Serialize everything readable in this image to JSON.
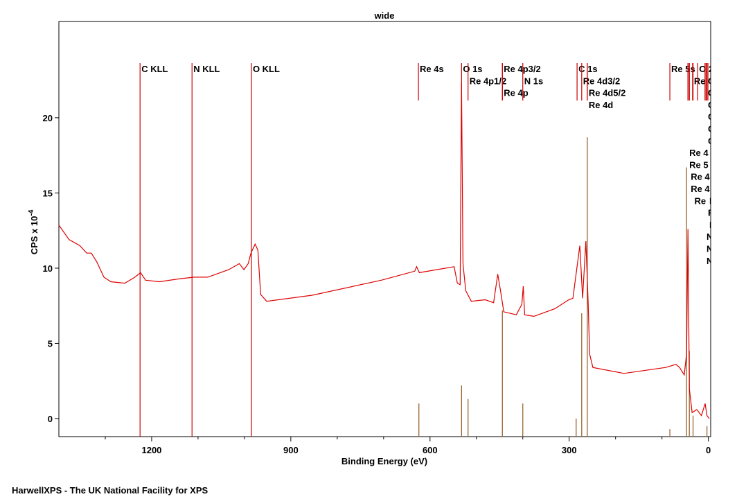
{
  "chart_data": {
    "type": "line",
    "title": "wide",
    "xlabel": "Binding Energy (eV)",
    "ylabel": "CPS x 10",
    "ylabel_exp": "-4",
    "footer": "HarwellXPS - The UK National Facility for XPS",
    "xlim": [
      1400,
      -5
    ],
    "ylim": [
      -1.2,
      26.4
    ],
    "xticks": [
      1200,
      900,
      600,
      300,
      0
    ],
    "xminor": [
      1300,
      1100,
      1000,
      800,
      700,
      500,
      400,
      200,
      100
    ],
    "yticks": [
      0,
      5,
      10,
      15,
      20
    ],
    "series": [
      {
        "name": "wide",
        "color": "#dd0000",
        "x": [
          1400,
          1378,
          1355,
          1340,
          1330,
          1318,
          1303,
          1288,
          1258,
          1236,
          1224,
          1213,
          1183,
          1138,
          1108,
          1079,
          1034,
          1011,
          1001,
          992,
          986,
          977,
          971,
          965,
          952,
          854,
          705,
          633,
          629,
          623,
          548,
          541,
          535,
          532,
          529,
          523,
          511,
          481,
          463,
          454,
          448,
          441,
          414,
          402,
          399,
          396,
          376,
          331,
          301,
          292,
          286,
          277,
          271,
          264,
          259,
          256,
          249,
          182,
          92,
          70,
          62,
          52,
          47,
          44,
          41,
          35,
          25,
          15,
          7,
          3,
          -2
        ],
        "values": [
          12.86,
          11.9,
          11.5,
          11.0,
          11.0,
          10.4,
          9.4,
          9.1,
          9.0,
          9.4,
          9.7,
          9.2,
          9.1,
          9.3,
          9.4,
          9.4,
          9.9,
          10.3,
          9.9,
          10.3,
          11.0,
          11.6,
          11.2,
          8.25,
          7.8,
          8.2,
          9.2,
          9.8,
          10.1,
          9.7,
          10.1,
          9.0,
          8.9,
          22.3,
          10.3,
          8.5,
          7.8,
          7.9,
          7.7,
          9.6,
          8.5,
          7.1,
          6.9,
          7.6,
          8.8,
          6.9,
          6.8,
          7.3,
          7.9,
          8.0,
          9.4,
          11.5,
          8.0,
          11.8,
          7.6,
          4.3,
          3.4,
          3.0,
          3.4,
          3.6,
          3.4,
          2.9,
          4.3,
          12.6,
          2.0,
          0.4,
          0.6,
          0.2,
          1.0,
          0.2,
          0
        ]
      }
    ],
    "reference": {
      "color": "#996633",
      "x": [
        624,
        532,
        518,
        444,
        400,
        285,
        273,
        261,
        83,
        47,
        41,
        33,
        3
      ],
      "values": [
        1.0,
        2.2,
        1.3,
        7.2,
        1.0,
        0.0,
        7.0,
        18.7,
        -0.7,
        16.7,
        4.5,
        0.2,
        -0.5
      ]
    },
    "markers": {
      "color": "#cc0000",
      "x": [
        1225,
        1113,
        985,
        625,
        532,
        518,
        444,
        444,
        400,
        283,
        273,
        261,
        261,
        23,
        83,
        4,
        4,
        4,
        4,
        4,
        4,
        44,
        44,
        41,
        41,
        34,
        33,
        4,
        1,
        1,
        7,
        7,
        7
      ],
      "labels": [
        "C KLL",
        "N KLL",
        "O KLL",
        "Re 4s",
        "O 1s",
        "Re 4p1/2",
        "Re 4p3/2",
        "Re 4p",
        "N 1s",
        "C 1s",
        "Re 4d3/2",
        "Re 4d5/2",
        "Re 4d",
        "O 2",
        "Re 5s",
        "C",
        "C",
        "C",
        "C",
        "C",
        "C",
        "Re 4",
        "Re 5",
        "Re 4",
        "Re 4",
        "Re",
        "Re",
        "R",
        "R",
        "R",
        "N",
        "N",
        "N"
      ],
      "full": [
        true,
        true,
        true,
        false,
        false,
        false,
        false,
        false,
        false,
        false,
        false,
        false,
        false,
        false,
        false,
        false,
        false,
        false,
        false,
        false,
        false,
        false,
        false,
        false,
        false,
        false,
        false,
        false,
        false,
        false,
        false,
        false,
        false
      ]
    }
  }
}
